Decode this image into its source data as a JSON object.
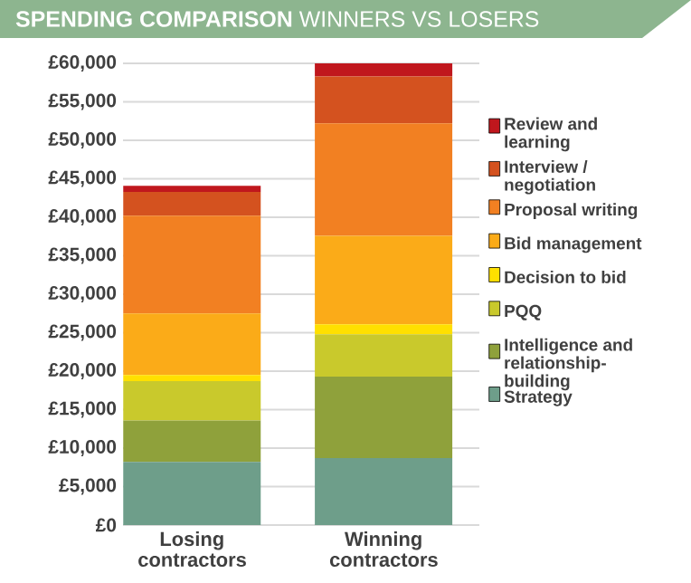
{
  "chart_data": {
    "type": "bar",
    "title": "**SPENDING COMPARISON** WINNERS VS LOSERS",
    "categories": [
      "Losing contractors",
      "Winning contractors"
    ],
    "stacked": true,
    "series": [
      {
        "name": "Strategy",
        "color": "#6e9e8a",
        "values": [
          8200,
          8700
        ]
      },
      {
        "name": "Intelligence and relationship-building",
        "color": "#8fa13b",
        "values": [
          5400,
          10600
        ]
      },
      {
        "name": "PQQ",
        "color": "#c9c92c",
        "values": [
          5100,
          5500
        ]
      },
      {
        "name": "Decision to bid",
        "color": "#ffe000",
        "values": [
          800,
          1300
        ]
      },
      {
        "name": "Bid management",
        "color": "#fbab18",
        "values": [
          8000,
          11500
        ]
      },
      {
        "name": "Proposal writing",
        "color": "#f28022",
        "values": [
          12700,
          14600
        ]
      },
      {
        "name": "Interview / negotiation",
        "color": "#d4521f",
        "values": [
          3100,
          6100
        ]
      },
      {
        "name": "Review and learning",
        "color": "#c0171d",
        "values": [
          800,
          1700
        ]
      }
    ],
    "ylim": [
      0,
      60000
    ],
    "yticks": [
      {
        "value": 0,
        "label": "£0"
      },
      {
        "value": 5000,
        "label": "£5,000"
      },
      {
        "value": 10000,
        "label": "£10,000"
      },
      {
        "value": 15000,
        "label": "£15,000"
      },
      {
        "value": 20000,
        "label": "£20,000"
      },
      {
        "value": 25000,
        "label": "£25,000"
      },
      {
        "value": 30000,
        "label": "£30,000"
      },
      {
        "value": 35000,
        "label": "£35,000"
      },
      {
        "value": 40000,
        "label": "£40,000"
      },
      {
        "value": 45000,
        "label": "£45,000"
      },
      {
        "value": 50000,
        "label": "£50,000"
      },
      {
        "value": 55000,
        "label": "£55,000"
      },
      {
        "value": 60000,
        "label": "£60,000"
      }
    ],
    "grid": "y",
    "legend": "right"
  }
}
